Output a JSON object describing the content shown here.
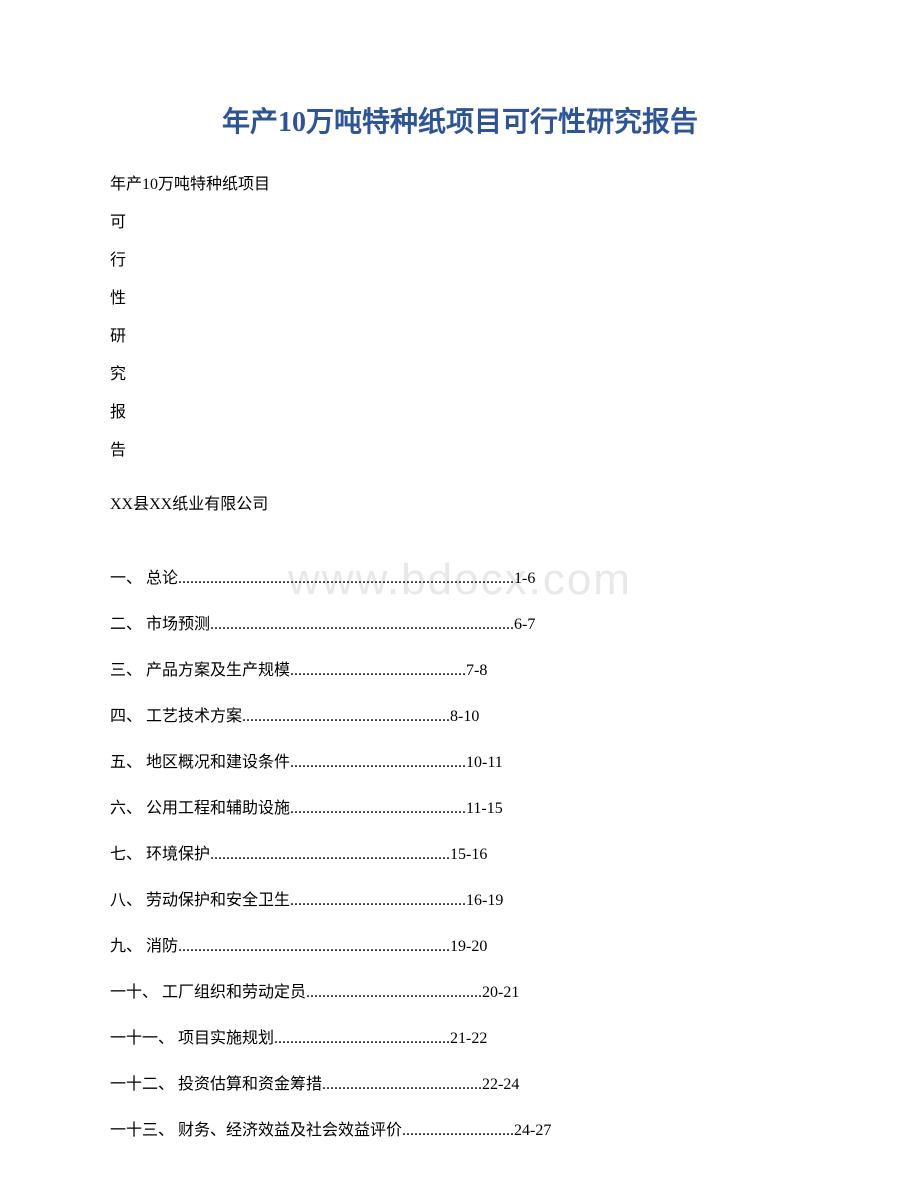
{
  "title": "年产10万吨特种纸项目可行性研究报告",
  "subtitle": "年产10万吨特种纸项目",
  "vertical_chars": [
    "可",
    "行",
    "性",
    "研",
    "究",
    "报",
    "告"
  ],
  "company": "XX县XX纸业有限公司",
  "watermark": "www.bdocx.com",
  "toc": [
    {
      "label": "一、 总论",
      "dots": "....................................................................................",
      "pages": "1-6"
    },
    {
      "label": "二、 市场预测",
      "dots": "............................................................................",
      "pages": "6-7"
    },
    {
      "label": "三、 产品方案及生产规模",
      "dots": "............................................",
      "pages": "7-8"
    },
    {
      "label": "四、 工艺技术方案",
      "dots": "....................................................",
      "pages": "8-10"
    },
    {
      "label": "五、 地区概况和建设条件",
      "dots": "............................................",
      "pages": "10-11"
    },
    {
      "label": "六、 公用工程和辅助设施",
      "dots": "............................................",
      "pages": "11-15"
    },
    {
      "label": "七、 环境保护",
      "dots": "............................................................",
      "pages": "15-16"
    },
    {
      "label": "八、 劳动保护和安全卫生",
      "dots": "............................................",
      "pages": "16-19"
    },
    {
      "label": "九、 消防",
      "dots": "....................................................................",
      "pages": "19-20"
    },
    {
      "label": "一十、 工厂组织和劳动定员",
      "dots": "............................................",
      "pages": "20-21"
    },
    {
      "label": "一十一、 项目实施规划",
      "dots": "............................................",
      "pages": "21-22"
    },
    {
      "label": "一十二、 投资估算和资金筹措",
      "dots": "........................................",
      "pages": "22-24"
    },
    {
      "label": "一十三、 财务、经济效益及社会效益评价",
      "dots": "............................",
      "pages": "24-27"
    }
  ],
  "colors": {
    "title_color": "#2e5496",
    "text_color": "#000000",
    "watermark_color": "#e8e8e8",
    "background": "#ffffff"
  }
}
